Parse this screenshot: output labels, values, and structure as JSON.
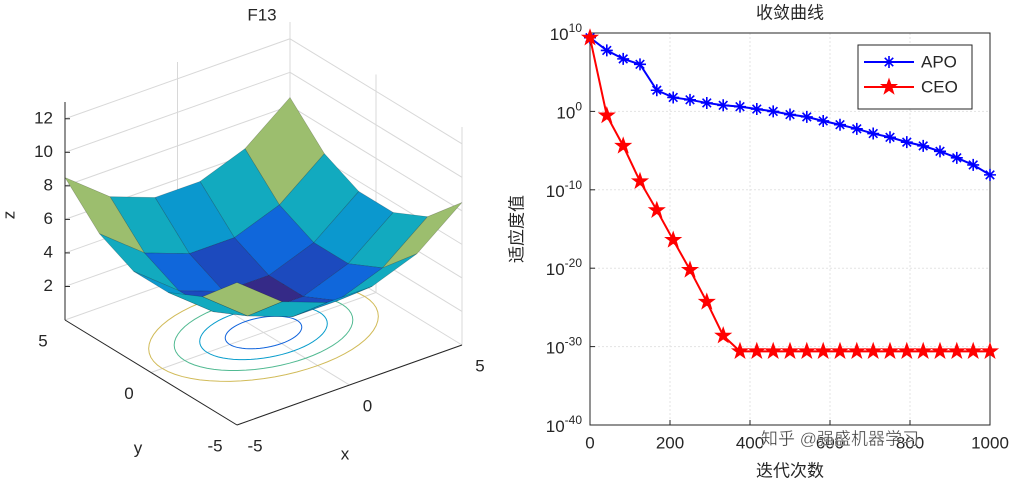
{
  "chart_data": [
    {
      "type": "surface",
      "title": "F13",
      "xlabel": "x",
      "ylabel": "y",
      "zlabel": "z",
      "x": [
        -5,
        -3,
        -1,
        1,
        3,
        5
      ],
      "y": [
        -5,
        -3,
        -1,
        1,
        3,
        5
      ],
      "z": [
        [
          8.5,
          6.4,
          5.4,
          5.4,
          6.4,
          8.5
        ],
        [
          6.4,
          4.3,
          3.3,
          3.3,
          4.3,
          6.4
        ],
        [
          5.4,
          3.3,
          2.3,
          2.3,
          3.3,
          5.4
        ],
        [
          5.4,
          3.3,
          2.3,
          2.3,
          3.3,
          5.4
        ],
        [
          6.4,
          4.3,
          3.3,
          3.3,
          4.3,
          6.4
        ],
        [
          8.5,
          6.4,
          5.4,
          5.4,
          6.4,
          8.5
        ]
      ],
      "xlim": [
        -5,
        5
      ],
      "ylim": [
        -5,
        5
      ],
      "zlim": [
        0,
        13
      ],
      "xticks": [
        -5,
        0,
        5
      ],
      "yticks": [
        -5,
        0,
        5
      ],
      "zticks": [
        2,
        4,
        6,
        8,
        10,
        12
      ],
      "grid": true,
      "colormap": [
        "#352a87",
        "#0f5cdd",
        "#1481d6",
        "#06a4ca",
        "#2eb7a4",
        "#87bf77",
        "#d1bb59",
        "#fec832",
        "#f9fb0e"
      ]
    },
    {
      "type": "line",
      "title": "收敛曲线",
      "xlabel": "迭代次数",
      "ylabel": "适应度值",
      "yscale": "log",
      "grid": true,
      "legend": "northeast",
      "x": [
        0,
        42,
        83,
        125,
        167,
        208,
        250,
        292,
        333,
        375,
        417,
        458,
        500,
        542,
        583,
        625,
        667,
        708,
        750,
        792,
        833,
        875,
        917,
        958,
        1000
      ],
      "series": [
        {
          "name": "APO",
          "color": "#0000ff",
          "marker": "asterisk",
          "values": [
            2500000000.0,
            60000000.0,
            5000000.0,
            1000000.0,
            500,
            60,
            30,
            12,
            6,
            4,
            2,
            1,
            0.4,
            0.2,
            0.06,
            0.02,
            0.006,
            0.0015,
            0.0005,
            0.00012,
            4e-05,
            8e-06,
            1.2e-06,
            1.5e-07,
            8e-09
          ]
        },
        {
          "name": "CEO",
          "color": "#ff0000",
          "marker": "star",
          "values": [
            2500000000.0,
            0.3,
            4e-05,
            1.2e-09,
            2.5e-13,
            4e-17,
            6e-21,
            5e-25,
            2.5e-29,
            2.5e-31,
            2.5e-31,
            2.5e-31,
            2.5e-31,
            2.5e-31,
            2.5e-31,
            2.5e-31,
            2.5e-31,
            2.5e-31,
            2.5e-31,
            2.5e-31,
            2.5e-31,
            2.5e-31,
            2.5e-31,
            2.5e-31,
            2.5e-31
          ]
        }
      ],
      "xlim": [
        0,
        1000
      ],
      "xticks": [
        0,
        200,
        400,
        600,
        800,
        1000
      ],
      "ylim": [
        1e-40,
        10000000000.0
      ],
      "yticks": [
        {
          "value": 1e-40,
          "label": "10^-40"
        },
        {
          "value": 1e-30,
          "label": "10^-30"
        },
        {
          "value": 1e-20,
          "label": "10^-20"
        },
        {
          "value": 1e-10,
          "label": "10^-10"
        },
        {
          "value": 1,
          "label": "10^0"
        },
        {
          "value": 10000000000.0,
          "label": "10^10"
        }
      ]
    }
  ],
  "watermark": "知乎 @强盛机器学习"
}
